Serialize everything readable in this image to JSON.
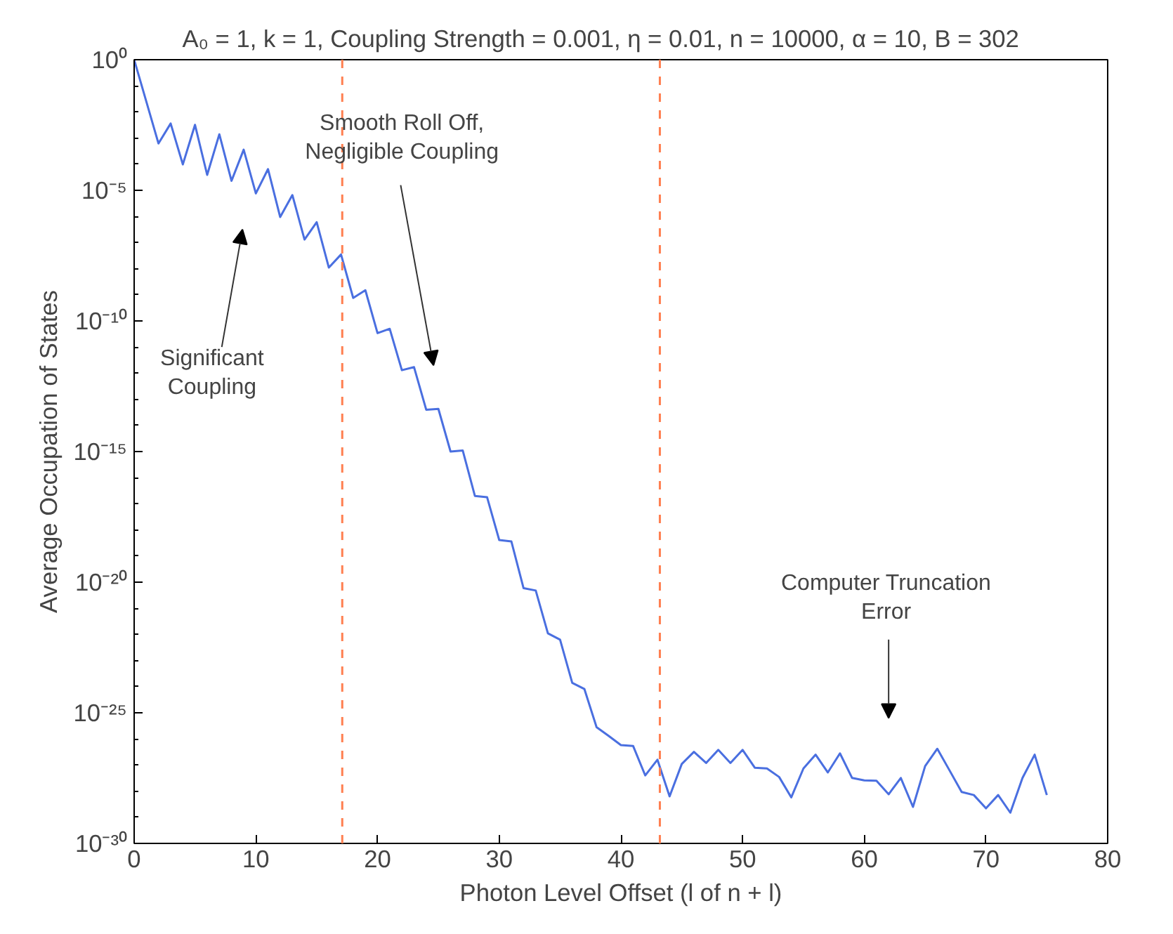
{
  "chart_data": {
    "type": "line",
    "title": "A₀ = 1,  k = 1,  Coupling Strength = 0.001,  η = 0.01,  n = 10000,  α = 10,  B = 302",
    "xlabel": "Photon Level Offset (l of n + l)",
    "ylabel": "Average Occupation of States",
    "log": "y",
    "line_style": "solid",
    "xlim": [
      0,
      80
    ],
    "xticks": [
      0,
      10,
      20,
      30,
      40,
      50,
      60,
      70,
      80
    ],
    "ylim": [
      1e-30,
      1
    ],
    "yticks": [
      {
        "value": 1,
        "label": "10⁰"
      },
      {
        "value": 1e-05,
        "label": "10⁻⁵"
      },
      {
        "value": 1e-10,
        "label": "10⁻¹⁰"
      },
      {
        "value": 1e-15,
        "label": "10⁻¹⁵"
      },
      {
        "value": 1e-20,
        "label": "10⁻²⁰"
      },
      {
        "value": 1e-25,
        "label": "10⁻²⁵"
      },
      {
        "value": 1e-30,
        "label": "10⁻³⁰"
      }
    ],
    "x": [
      0,
      1,
      2,
      3,
      4,
      5,
      6,
      7,
      8,
      9,
      10,
      11,
      12,
      13,
      14,
      15,
      16,
      17,
      18,
      19,
      20,
      21,
      22,
      23,
      24,
      25,
      26,
      27,
      28,
      29,
      30,
      31,
      32,
      33,
      34,
      35,
      36,
      37,
      38,
      39,
      40,
      41,
      42,
      43,
      44,
      45,
      46,
      47,
      48,
      49,
      50,
      51,
      52,
      53,
      54,
      55,
      56,
      57,
      58,
      59,
      60,
      61,
      62,
      63,
      64,
      65,
      66,
      67,
      68,
      69,
      70,
      71,
      72,
      73,
      74,
      75
    ],
    "series": [
      {
        "color": "#4a6fe0",
        "values": [
          1,
          0.025,
          0.00062,
          0.0036,
          9.8e-05,
          0.0032,
          3.9e-05,
          0.0014,
          2.3e-05,
          0.00036,
          7.6e-06,
          6.5e-05,
          9.5e-07,
          6.6e-06,
          1.3e-07,
          6e-07,
          1.1e-08,
          3.5e-08,
          7.6e-10,
          1.5e-09,
          3.4e-11,
          5e-11,
          1.3e-12,
          1.7e-12,
          4e-14,
          4.3e-14,
          1e-15,
          1.1e-15,
          2e-17,
          1.8e-17,
          4.1e-19,
          3.6e-19,
          5.9e-21,
          4.8e-21,
          1.1e-22,
          6.3e-23,
          1.4e-24,
          8.1e-25,
          2.8e-26,
          1.3e-26,
          5.8e-27,
          5.4e-27,
          4e-28,
          1.6e-27,
          6.3e-29,
          1.1e-27,
          3.2e-27,
          1.2e-27,
          3.8e-27,
          1.2e-27,
          3.8e-27,
          7.9e-28,
          7.4e-28,
          3.5e-28,
          5.8e-29,
          7.4e-28,
          2.5e-27,
          5.2e-28,
          2.8e-27,
          3.2e-28,
          2.6e-28,
          2.5e-28,
          7.6e-29,
          3.2e-28,
          2.5e-29,
          9.1e-28,
          4.2e-27,
          6.3e-28,
          9.3e-29,
          7.1e-29,
          2.2e-29,
          7.1e-29,
          1.5e-29,
          3.2e-28,
          2.5e-27,
          7.1e-29
        ]
      }
    ],
    "ref_lines": [
      {
        "axis": "x",
        "value": 17.1,
        "color": "#ff7f50",
        "line_style": "dashed"
      },
      {
        "axis": "x",
        "value": 43.2,
        "color": "#ff7f50",
        "line_style": "dashed"
      }
    ],
    "annotations": [
      "Significant\nCoupling",
      "Smooth Roll Off,\nNegligible Coupling",
      "Computer Truncation\nError"
    ]
  }
}
